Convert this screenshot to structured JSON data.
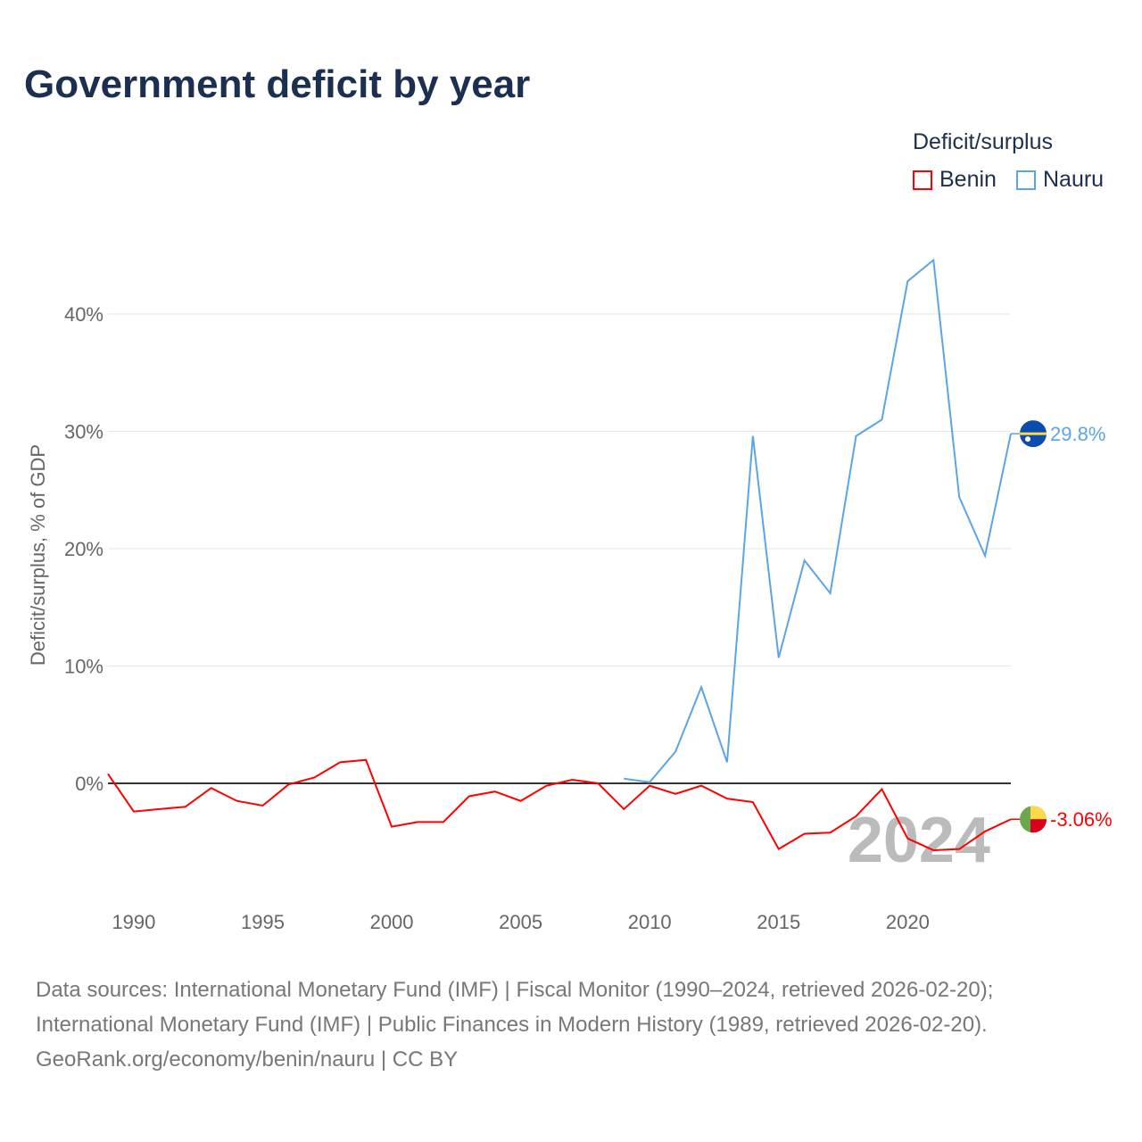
{
  "chart_data": {
    "type": "line",
    "title": "Government deficit by year",
    "ylabel": "Deficit/surplus, % of GDP",
    "xlabel": "",
    "xlim": [
      1989,
      2024
    ],
    "ylim": [
      -8,
      46
    ],
    "yticks": [
      0,
      10,
      20,
      30,
      40
    ],
    "ytick_labels": [
      "0%",
      "10%",
      "20%",
      "30%",
      "40%"
    ],
    "xticks": [
      1990,
      1995,
      2000,
      2005,
      2010,
      2015,
      2020
    ],
    "xtick_labels": [
      "1990",
      "1995",
      "2000",
      "2005",
      "2010",
      "2015",
      "2020"
    ],
    "grid": true,
    "legend_title": "Deficit/surplus",
    "legend_position": "top-right",
    "year_watermark": "2024",
    "series": [
      {
        "name": "Benin",
        "color": "#ff0000",
        "end_label": "-3.06%",
        "flag": "benin-flag",
        "x": [
          1989,
          1990,
          1991,
          1992,
          1993,
          1994,
          1995,
          1996,
          1997,
          1998,
          1999,
          2000,
          2001,
          2002,
          2003,
          2004,
          2005,
          2006,
          2007,
          2008,
          2009,
          2010,
          2011,
          2012,
          2013,
          2014,
          2015,
          2016,
          2017,
          2018,
          2019,
          2020,
          2021,
          2022,
          2023,
          2024
        ],
        "values": [
          0.8,
          -2.4,
          -2.2,
          -2.0,
          -0.4,
          -1.5,
          -1.9,
          -0.1,
          0.5,
          1.8,
          2.0,
          -3.7,
          -3.3,
          -3.3,
          -1.1,
          -0.7,
          -1.5,
          -0.2,
          0.3,
          0.0,
          -2.2,
          -0.2,
          -0.9,
          -0.2,
          -1.3,
          -1.6,
          -5.6,
          -4.3,
          -4.2,
          -2.8,
          -0.5,
          -4.7,
          -5.7,
          -5.6,
          -4.1,
          -3.06
        ]
      },
      {
        "name": "Nauru",
        "color": "#5ba4e6",
        "end_label": "29.8%",
        "flag": "nauru-flag",
        "x": [
          2009,
          2010,
          2011,
          2012,
          2013,
          2014,
          2015,
          2016,
          2017,
          2018,
          2019,
          2020,
          2021,
          2022,
          2023,
          2024
        ],
        "values": [
          0.4,
          0.1,
          2.7,
          8.2,
          1.8,
          29.6,
          10.7,
          19.0,
          16.2,
          29.6,
          31.0,
          42.8,
          44.6,
          24.4,
          19.4,
          29.8
        ]
      }
    ]
  },
  "footer": {
    "line1": "Data sources: International Monetary Fund (IMF) | Fiscal Monitor (1990–2024, retrieved 2026-02-20);",
    "line2": "International Monetary Fund (IMF) | Public Finances in Modern History (1989, retrieved 2026-02-20).",
    "line3": "GeoRank.org/economy/benin/nauru | CC BY"
  }
}
